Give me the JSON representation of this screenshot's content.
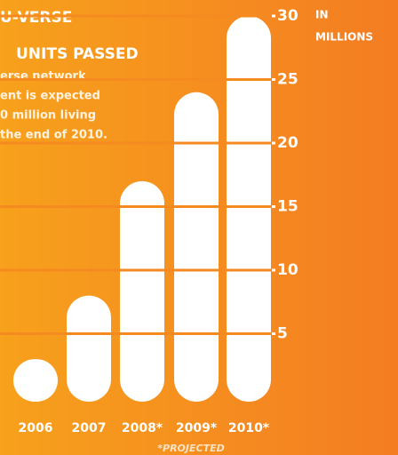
{
  "chart_data": {
    "type": "bar",
    "title_lines": [
      "U-VERSE",
      "UNITS PASSED"
    ],
    "subtitle_lines": [
      "erse network",
      "ent is expected",
      "0 million living",
      "the end of 2010."
    ],
    "y_axis_label_lines": [
      "IN",
      "MILLIONS"
    ],
    "categories": [
      "2006",
      "2007",
      "2008*",
      "2009*",
      "2010*"
    ],
    "values": [
      3,
      8,
      17,
      24,
      30
    ],
    "color": "#ffffff",
    "ylim": [
      0,
      30
    ],
    "yticks": [
      5,
      10,
      15,
      20,
      25,
      30
    ],
    "grid": true,
    "grid_color": "#f58a20",
    "note": "*PROJECTED"
  }
}
